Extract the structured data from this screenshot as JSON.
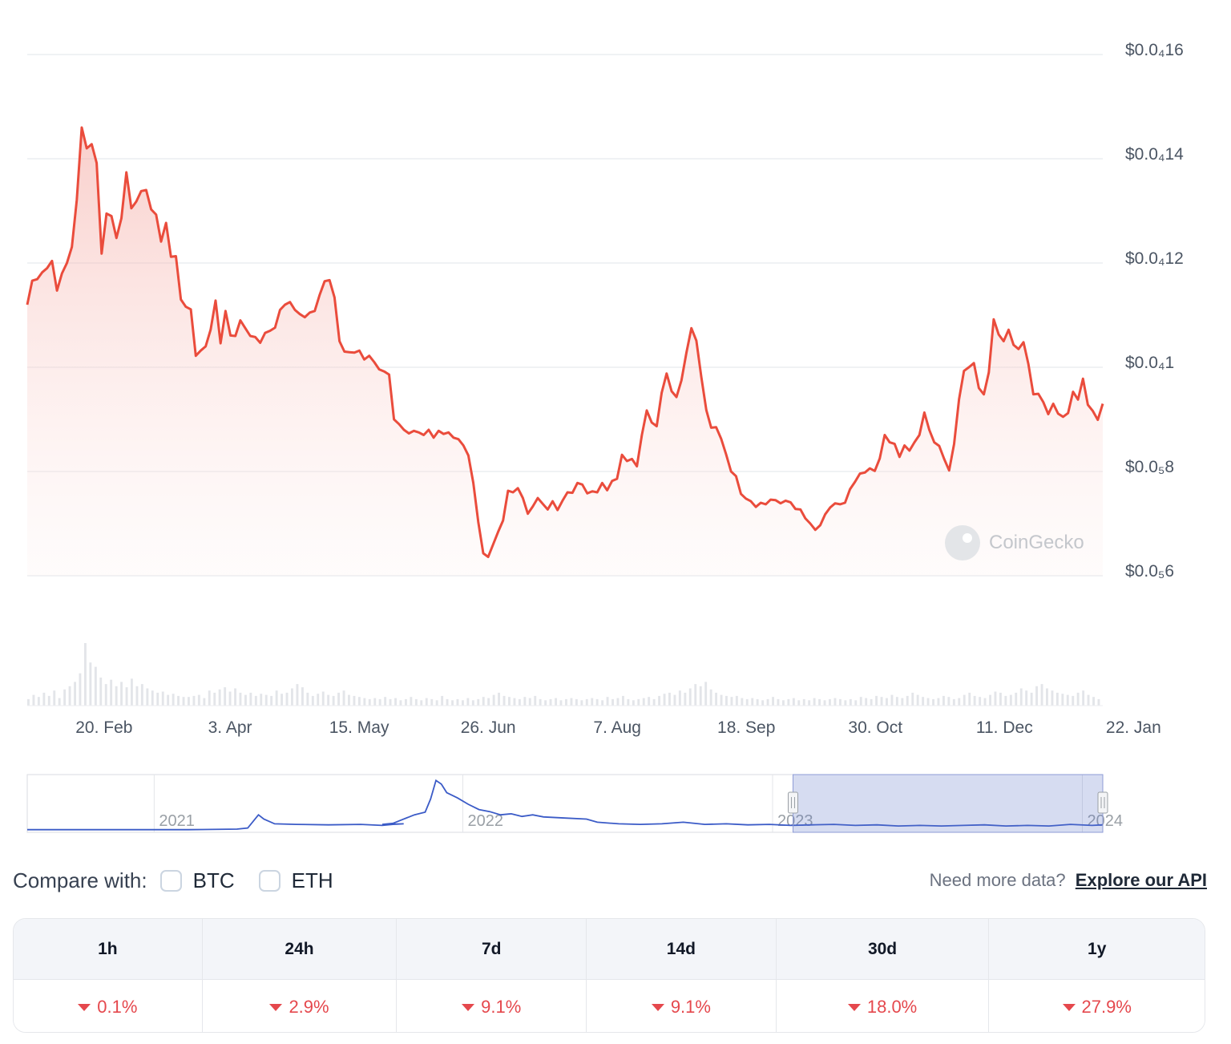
{
  "chart_data": {
    "type": "area",
    "title": "",
    "ylabel": "",
    "xlabel": "",
    "y_ticks": [
      {
        "value": 1.6e-06,
        "label": "$0.0₄16"
      },
      {
        "value": 1.4e-06,
        "label": "$0.0₄14"
      },
      {
        "value": 1.2e-06,
        "label": "$0.0₄12"
      },
      {
        "value": 1e-06,
        "label": "$0.0₄1"
      },
      {
        "value": 8e-07,
        "label": "$0.0₅8"
      },
      {
        "value": 6e-07,
        "label": "$0.0₅6"
      }
    ],
    "ylim": [
      6e-07,
      1.6e-06
    ],
    "x_ticks": [
      "20. Feb",
      "3. Apr",
      "15. May",
      "26. Jun",
      "7. Aug",
      "18. Sep",
      "30. Oct",
      "11. Dec",
      "22. Jan"
    ],
    "x_range_days": [
      0,
      350
    ],
    "x_tick_days": [
      25,
      66,
      108,
      150,
      192,
      234,
      276,
      318,
      360
    ],
    "series": [
      {
        "color": "#ea4c3c",
        "points": [
          [
            0,
            1.12
          ],
          [
            1,
            1.166
          ],
          [
            2,
            1.169
          ],
          [
            3,
            1.182
          ],
          [
            4,
            1.19
          ],
          [
            5,
            1.204
          ],
          [
            6,
            1.147
          ],
          [
            7,
            1.18
          ],
          [
            8,
            1.2
          ],
          [
            9,
            1.231
          ],
          [
            10,
            1.321
          ],
          [
            11,
            1.46
          ],
          [
            12,
            1.42
          ],
          [
            13,
            1.428
          ],
          [
            14,
            1.392
          ],
          [
            15,
            1.218
          ],
          [
            16,
            1.295
          ],
          [
            17,
            1.29
          ],
          [
            18,
            1.248
          ],
          [
            19,
            1.286
          ],
          [
            20,
            1.374
          ],
          [
            21,
            1.305
          ],
          [
            22,
            1.318
          ],
          [
            23,
            1.338
          ],
          [
            24,
            1.34
          ],
          [
            25,
            1.303
          ],
          [
            26,
            1.293
          ],
          [
            27,
            1.241
          ],
          [
            28,
            1.277
          ],
          [
            29,
            1.212
          ],
          [
            30,
            1.213
          ],
          [
            31,
            1.13
          ],
          [
            32,
            1.116
          ],
          [
            33,
            1.111
          ],
          [
            34,
            1.022
          ],
          [
            35,
            1.032
          ],
          [
            36,
            1.04
          ],
          [
            37,
            1.072
          ],
          [
            38,
            1.128
          ],
          [
            39,
            1.046
          ],
          [
            40,
            1.108
          ],
          [
            41,
            1.061
          ],
          [
            42,
            1.06
          ],
          [
            43,
            1.09
          ],
          [
            44,
            1.075
          ],
          [
            45,
            1.06
          ],
          [
            46,
            1.058
          ],
          [
            47,
            1.047
          ],
          [
            48,
            1.066
          ],
          [
            49,
            1.07
          ],
          [
            50,
            1.076
          ],
          [
            51,
            1.11
          ],
          [
            52,
            1.12
          ],
          [
            53,
            1.125
          ],
          [
            54,
            1.11
          ],
          [
            55,
            1.102
          ],
          [
            56,
            1.096
          ],
          [
            57,
            1.105
          ],
          [
            58,
            1.108
          ],
          [
            59,
            1.139
          ],
          [
            60,
            1.165
          ],
          [
            61,
            1.167
          ],
          [
            62,
            1.134
          ],
          [
            63,
            1.05
          ],
          [
            64,
            1.03
          ],
          [
            65,
            1.029
          ],
          [
            66,
            1.028
          ],
          [
            67,
            1.032
          ],
          [
            68,
            1.015
          ],
          [
            69,
            1.022
          ],
          [
            70,
            1.01
          ],
          [
            71,
            0.996
          ],
          [
            72,
            0.992
          ],
          [
            73,
            0.986
          ],
          [
            74,
            0.9
          ],
          [
            75,
            0.891
          ],
          [
            76,
            0.88
          ],
          [
            77,
            0.873
          ],
          [
            78,
            0.878
          ],
          [
            79,
            0.875
          ],
          [
            80,
            0.87
          ],
          [
            81,
            0.88
          ],
          [
            82,
            0.865
          ],
          [
            83,
            0.878
          ],
          [
            84,
            0.872
          ],
          [
            85,
            0.875
          ],
          [
            86,
            0.865
          ],
          [
            87,
            0.862
          ],
          [
            88,
            0.85
          ],
          [
            89,
            0.831
          ],
          [
            90,
            0.778
          ],
          [
            91,
            0.703
          ],
          [
            92,
            0.643
          ],
          [
            93,
            0.636
          ],
          [
            94,
            0.66
          ],
          [
            95,
            0.684
          ],
          [
            96,
            0.706
          ],
          [
            97,
            0.763
          ],
          [
            98,
            0.76
          ],
          [
            99,
            0.768
          ],
          [
            100,
            0.749
          ],
          [
            101,
            0.719
          ],
          [
            102,
            0.733
          ],
          [
            103,
            0.749
          ],
          [
            104,
            0.738
          ],
          [
            105,
            0.727
          ],
          [
            106,
            0.743
          ],
          [
            107,
            0.726
          ],
          [
            108,
            0.744
          ],
          [
            109,
            0.76
          ],
          [
            110,
            0.759
          ],
          [
            111,
            0.778
          ],
          [
            112,
            0.775
          ],
          [
            113,
            0.758
          ],
          [
            114,
            0.762
          ],
          [
            115,
            0.76
          ],
          [
            116,
            0.778
          ],
          [
            117,
            0.764
          ],
          [
            118,
            0.782
          ],
          [
            119,
            0.786
          ],
          [
            120,
            0.832
          ],
          [
            121,
            0.82
          ],
          [
            122,
            0.824
          ],
          [
            123,
            0.81
          ],
          [
            124,
            0.87
          ],
          [
            125,
            0.917
          ],
          [
            126,
            0.894
          ],
          [
            127,
            0.887
          ],
          [
            128,
            0.951
          ],
          [
            129,
            0.988
          ],
          [
            130,
            0.954
          ],
          [
            131,
            0.943
          ],
          [
            132,
            0.975
          ],
          [
            133,
            1.028
          ],
          [
            134,
            1.075
          ],
          [
            135,
            1.051
          ],
          [
            136,
            0.981
          ],
          [
            137,
            0.918
          ],
          [
            138,
            0.884
          ],
          [
            139,
            0.885
          ],
          [
            140,
            0.863
          ],
          [
            141,
            0.833
          ],
          [
            142,
            0.8
          ],
          [
            143,
            0.791
          ],
          [
            144,
            0.757
          ],
          [
            145,
            0.748
          ],
          [
            146,
            0.743
          ],
          [
            147,
            0.732
          ],
          [
            148,
            0.74
          ],
          [
            149,
            0.737
          ],
          [
            150,
            0.746
          ],
          [
            151,
            0.745
          ],
          [
            152,
            0.739
          ],
          [
            153,
            0.744
          ],
          [
            154,
            0.741
          ],
          [
            155,
            0.728
          ],
          [
            156,
            0.727
          ],
          [
            157,
            0.71
          ],
          [
            158,
            0.7
          ],
          [
            159,
            0.688
          ],
          [
            160,
            0.697
          ],
          [
            161,
            0.718
          ],
          [
            162,
            0.731
          ],
          [
            163,
            0.739
          ],
          [
            164,
            0.737
          ],
          [
            165,
            0.74
          ],
          [
            166,
            0.766
          ],
          [
            167,
            0.78
          ],
          [
            168,
            0.796
          ],
          [
            169,
            0.798
          ],
          [
            170,
            0.806
          ],
          [
            171,
            0.801
          ],
          [
            172,
            0.825
          ],
          [
            173,
            0.87
          ],
          [
            174,
            0.856
          ],
          [
            175,
            0.853
          ],
          [
            176,
            0.828
          ],
          [
            177,
            0.85
          ],
          [
            178,
            0.84
          ],
          [
            179,
            0.856
          ],
          [
            180,
            0.87
          ],
          [
            181,
            0.913
          ],
          [
            182,
            0.88
          ],
          [
            183,
            0.856
          ],
          [
            184,
            0.849
          ],
          [
            185,
            0.824
          ],
          [
            186,
            0.802
          ],
          [
            187,
            0.853
          ],
          [
            188,
            0.939
          ],
          [
            189,
            0.993
          ],
          [
            190,
            1.0
          ],
          [
            191,
            1.008
          ],
          [
            192,
            0.96
          ],
          [
            193,
            0.948
          ],
          [
            194,
            0.99
          ],
          [
            195,
            1.092
          ],
          [
            196,
            1.063
          ],
          [
            197,
            1.05
          ],
          [
            198,
            1.072
          ],
          [
            199,
            1.043
          ],
          [
            200,
            1.035
          ],
          [
            201,
            1.048
          ],
          [
            202,
            1.006
          ],
          [
            203,
            0.948
          ],
          [
            204,
            0.949
          ],
          [
            205,
            0.933
          ],
          [
            206,
            0.91
          ],
          [
            207,
            0.93
          ],
          [
            208,
            0.911
          ],
          [
            209,
            0.905
          ],
          [
            210,
            0.912
          ],
          [
            211,
            0.953
          ],
          [
            212,
            0.938
          ],
          [
            213,
            0.978
          ],
          [
            214,
            0.928
          ],
          [
            215,
            0.916
          ],
          [
            216,
            0.899
          ],
          [
            217,
            0.93
          ]
        ]
      }
    ],
    "volume_bars": [
      6,
      10,
      8,
      12,
      9,
      14,
      7,
      15,
      18,
      22,
      30,
      58,
      40,
      36,
      26,
      20,
      24,
      18,
      22,
      17,
      25,
      18,
      20,
      16,
      14,
      12,
      13,
      10,
      11,
      9,
      8,
      8,
      9,
      10,
      7,
      14,
      12,
      15,
      17,
      13,
      16,
      12,
      10,
      12,
      9,
      11,
      10,
      9,
      14,
      11,
      12,
      16,
      20,
      17,
      12,
      9,
      11,
      13,
      10,
      9,
      12,
      14,
      10,
      9,
      8,
      7,
      6,
      7,
      6,
      8,
      6,
      7,
      5,
      6,
      8,
      6,
      5,
      7,
      6,
      5,
      9,
      6,
      5,
      6,
      5,
      7,
      5,
      6,
      8,
      7,
      10,
      12,
      9,
      8,
      7,
      6,
      8,
      7,
      9,
      6,
      5,
      6,
      7,
      5,
      6,
      7,
      6,
      5,
      6,
      7,
      6,
      5,
      8,
      6,
      7,
      9,
      6,
      5,
      6,
      7,
      8,
      6,
      9,
      11,
      12,
      10,
      14,
      12,
      16,
      20,
      18,
      22,
      15,
      12,
      10,
      9,
      8,
      9,
      7,
      6,
      7,
      6,
      5,
      6,
      8,
      6,
      5,
      6,
      7,
      5,
      6,
      5,
      7,
      6,
      5,
      6,
      7,
      6,
      5,
      6,
      5,
      8,
      7,
      6,
      9,
      8,
      7,
      10,
      8,
      7,
      9,
      12,
      10,
      8,
      7,
      6,
      7,
      9,
      8,
      6,
      7,
      10,
      12,
      9,
      8,
      7,
      10,
      13,
      12,
      9,
      10,
      12,
      16,
      14,
      12,
      18,
      20,
      16,
      14,
      12,
      11,
      10,
      9,
      12,
      14,
      10,
      8,
      6
    ],
    "navigator": {
      "years": [
        "2021",
        "2022",
        "2023",
        "2024"
      ],
      "series": [
        [
          0,
          0.02
        ],
        [
          0.05,
          0.02
        ],
        [
          0.1,
          0.02
        ],
        [
          0.15,
          0.02
        ],
        [
          0.195,
          0.03
        ],
        [
          0.205,
          0.05
        ],
        [
          0.215,
          0.3
        ],
        [
          0.22,
          0.22
        ],
        [
          0.23,
          0.13
        ],
        [
          0.25,
          0.12
        ],
        [
          0.28,
          0.11
        ],
        [
          0.31,
          0.12
        ],
        [
          0.33,
          0.1
        ],
        [
          0.34,
          0.12
        ],
        [
          0.35,
          0.13
        ],
        [
          0.33,
          0.12
        ],
        [
          0.34,
          0.14
        ],
        [
          0.36,
          0.3
        ],
        [
          0.37,
          0.35
        ],
        [
          0.375,
          0.6
        ],
        [
          0.38,
          0.95
        ],
        [
          0.385,
          0.88
        ],
        [
          0.39,
          0.72
        ],
        [
          0.4,
          0.62
        ],
        [
          0.41,
          0.5
        ],
        [
          0.42,
          0.4
        ],
        [
          0.43,
          0.36
        ],
        [
          0.44,
          0.3
        ],
        [
          0.45,
          0.32
        ],
        [
          0.46,
          0.27
        ],
        [
          0.47,
          0.3
        ],
        [
          0.48,
          0.26
        ],
        [
          0.5,
          0.24
        ],
        [
          0.52,
          0.22
        ],
        [
          0.53,
          0.16
        ],
        [
          0.55,
          0.13
        ],
        [
          0.57,
          0.12
        ],
        [
          0.59,
          0.13
        ],
        [
          0.61,
          0.16
        ],
        [
          0.63,
          0.12
        ],
        [
          0.65,
          0.13
        ],
        [
          0.67,
          0.11
        ],
        [
          0.69,
          0.12
        ],
        [
          0.71,
          0.1
        ],
        [
          0.73,
          0.11
        ],
        [
          0.75,
          0.12
        ],
        [
          0.77,
          0.1
        ],
        [
          0.79,
          0.11
        ],
        [
          0.81,
          0.09
        ],
        [
          0.83,
          0.1
        ],
        [
          0.85,
          0.09
        ],
        [
          0.87,
          0.1
        ],
        [
          0.89,
          0.11
        ],
        [
          0.91,
          0.09
        ],
        [
          0.93,
          0.1
        ],
        [
          0.95,
          0.09
        ],
        [
          0.97,
          0.12
        ],
        [
          0.99,
          0.1
        ],
        [
          1.0,
          0.11
        ]
      ],
      "selection": [
        0.712,
        1.0
      ]
    }
  },
  "watermark": "CoinGecko",
  "compare": {
    "label": "Compare with:",
    "options": [
      "BTC",
      "ETH"
    ]
  },
  "api": {
    "prompt": "Need more data?",
    "link": "Explore our API"
  },
  "performance": {
    "headers": [
      "1h",
      "24h",
      "7d",
      "14d",
      "30d",
      "1y"
    ],
    "values": [
      "0.1%",
      "2.9%",
      "9.1%",
      "9.1%",
      "18.0%",
      "27.9%"
    ],
    "direction": "down",
    "down_color": "#e5484d"
  }
}
